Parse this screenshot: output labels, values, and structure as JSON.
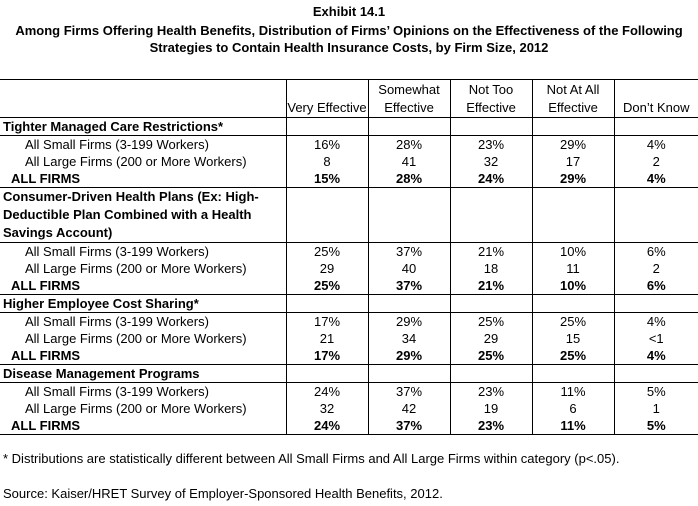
{
  "exhibit_label": "Exhibit 14.1",
  "title": "Among Firms Offering Health Benefits, Distribution of Firms’ Opinions on the Effectiveness of the Following Strategies to Contain Health Insurance Costs, by Firm Size, 2012",
  "columns": [
    "Very Effective",
    "Somewhat Effective",
    "Not Too Effective",
    "Not At All Effective",
    "Don’t Know"
  ],
  "groups": [
    {
      "label": "Tighter Managed Care Restrictions*",
      "rows": [
        {
          "label": "All Small Firms (3-199 Workers)",
          "values": [
            "16%",
            "28%",
            "23%",
            "29%",
            "4%"
          ]
        },
        {
          "label": "All Large Firms (200 or More Workers)",
          "values": [
            "8",
            "41",
            "32",
            "17",
            "2"
          ]
        },
        {
          "label": "ALL FIRMS",
          "values": [
            "15%",
            "28%",
            "24%",
            "29%",
            "4%"
          ]
        }
      ]
    },
    {
      "label": "Consumer-Driven Health Plans (Ex: High-Deductible Plan Combined with a Health Savings Account)",
      "rows": [
        {
          "label": "All Small Firms (3-199 Workers)",
          "values": [
            "25%",
            "37%",
            "21%",
            "10%",
            "6%"
          ]
        },
        {
          "label": "All Large Firms (200 or More Workers)",
          "values": [
            "29",
            "40",
            "18",
            "11",
            "2"
          ]
        },
        {
          "label": "ALL FIRMS",
          "values": [
            "25%",
            "37%",
            "21%",
            "10%",
            "6%"
          ]
        }
      ]
    },
    {
      "label": "Higher Employee Cost Sharing*",
      "rows": [
        {
          "label": "All Small Firms (3-199 Workers)",
          "values": [
            "17%",
            "29%",
            "25%",
            "25%",
            "4%"
          ]
        },
        {
          "label": "All Large Firms (200 or More Workers)",
          "values": [
            "21",
            "34",
            "29",
            "15",
            "<1"
          ]
        },
        {
          "label": "ALL FIRMS",
          "values": [
            "17%",
            "29%",
            "25%",
            "25%",
            "4%"
          ]
        }
      ]
    },
    {
      "label": "Disease Management Programs",
      "rows": [
        {
          "label": "All Small Firms (3-199 Workers)",
          "values": [
            "24%",
            "37%",
            "23%",
            "11%",
            "5%"
          ]
        },
        {
          "label": "All Large Firms (200 or More Workers)",
          "values": [
            "32",
            "42",
            "19",
            "6",
            "1"
          ]
        },
        {
          "label": "ALL FIRMS",
          "values": [
            "24%",
            "37%",
            "23%",
            "11%",
            "5%"
          ]
        }
      ]
    }
  ],
  "footnote": "* Distributions are statistically different between All Small Firms and All Large Firms within category (p<.05).",
  "source": "Source: Kaiser/HRET Survey of Employer-Sponsored Health Benefits, 2012."
}
